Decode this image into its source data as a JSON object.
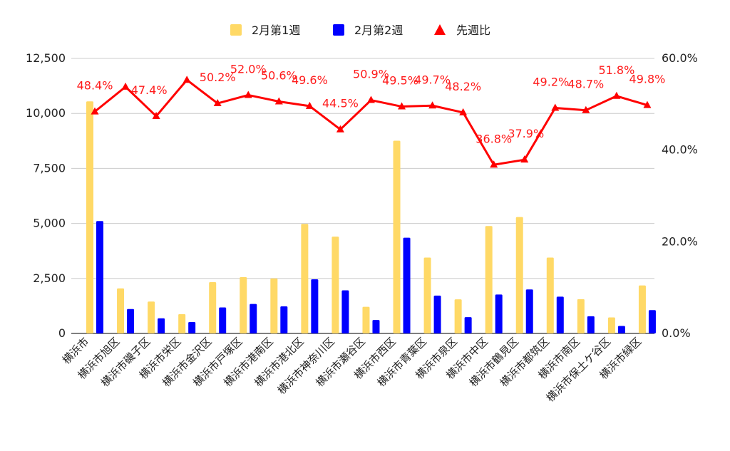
{
  "chart_data": {
    "type": "bar",
    "categories": [
      "横浜市",
      "横浜市旭区",
      "横浜市磯子区",
      "横浜市栄区",
      "横浜市金沢区",
      "横浜市戸塚区",
      "横浜市港南区",
      "横浜市港北区",
      "横浜市神奈川区",
      "横浜市瀬谷区",
      "横浜市西区",
      "横浜市青葉区",
      "横浜市泉区",
      "横浜市中区",
      "横浜市鶴見区",
      "横浜市都筑区",
      "横浜市南区",
      "横浜市保土ケ谷区",
      "横浜市緑区"
    ],
    "series": [
      {
        "name": "2月第1週",
        "type": "bar",
        "axis": "left",
        "color": "#ffd966",
        "values": [
          10550,
          2050,
          1450,
          880,
          2330,
          2560,
          2500,
          4980,
          4400,
          1210,
          8760,
          3450,
          1550,
          4880,
          5290,
          3450,
          1560,
          730,
          2180
        ]
      },
      {
        "name": "2月第2週",
        "type": "bar",
        "axis": "left",
        "color": "#0000ff",
        "values": [
          5110,
          1110,
          690,
          520,
          1180,
          1340,
          1230,
          2460,
          1960,
          610,
          4350,
          1720,
          740,
          1770,
          2000,
          1670,
          780,
          340,
          1060
        ]
      },
      {
        "name": "先週比",
        "type": "line",
        "axis": "right",
        "color": "#ff0000",
        "marker": "triangle",
        "values": [
          48.4,
          53.8,
          47.4,
          55.3,
          50.2,
          52.0,
          50.6,
          49.6,
          44.5,
          50.9,
          49.5,
          49.7,
          48.2,
          36.8,
          37.9,
          49.2,
          48.7,
          51.8,
          49.8
        ],
        "labels": [
          "48.4%",
          "",
          "47.4%",
          "",
          "50.2%",
          "52.0%",
          "50.6%",
          "49.6%",
          "44.5%",
          "50.9%",
          "49.5%",
          "49.7%",
          "48.2%",
          "36.8%",
          "37.9%",
          "49.2%",
          "48.7%",
          "51.8%",
          "49.8%"
        ]
      }
    ],
    "y_left": {
      "min": 0,
      "max": 12500,
      "ticks": [
        0,
        2500,
        5000,
        7500,
        10000,
        12500
      ],
      "tick_labels": [
        "0",
        "2,500",
        "5,000",
        "7,500",
        "10,000",
        "12,500"
      ]
    },
    "y_right": {
      "min": 0,
      "max": 60,
      "ticks": [
        0,
        20,
        40,
        60
      ],
      "tick_labels": [
        "0.0%",
        "20.0%",
        "40.0%",
        "60.0%"
      ]
    },
    "grid": true,
    "legend_position": "top-center",
    "title": "",
    "xlabel": "",
    "ylabel": ""
  }
}
